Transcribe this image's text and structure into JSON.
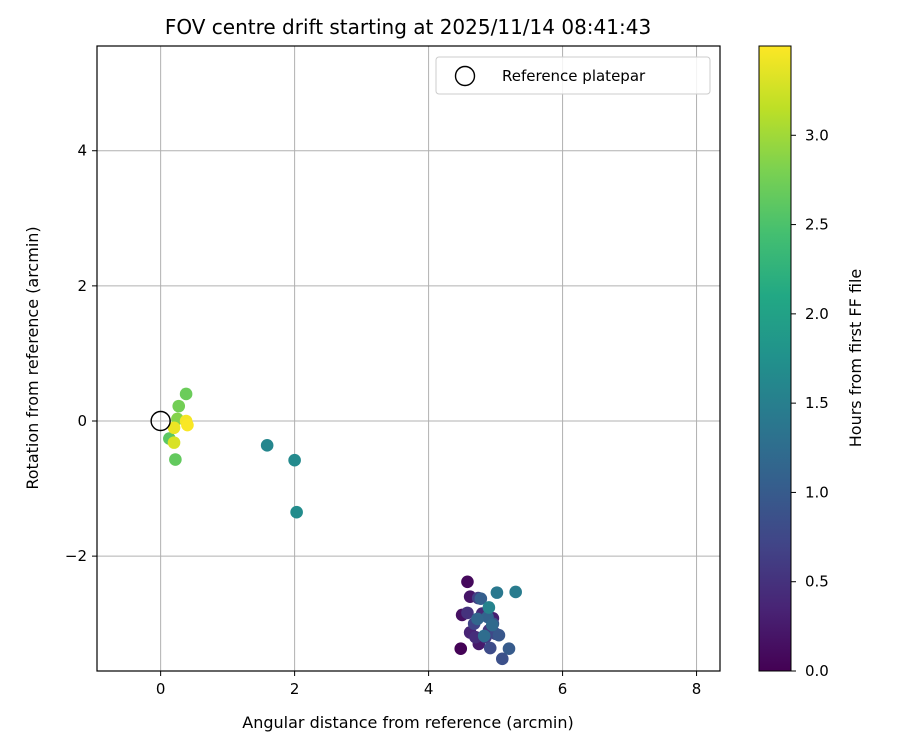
{
  "chart_data": {
    "type": "scatter",
    "title": "FOV centre drift starting at 2025/11/14 08:41:43",
    "xlabel": "Angular distance from reference (arcmin)",
    "ylabel": "Rotation from reference (arcmin)",
    "xlim": [
      -0.95,
      8.35
    ],
    "ylim": [
      -3.7,
      5.55
    ],
    "xticks": [
      0,
      2,
      4,
      6,
      8
    ],
    "yticks": [
      -2,
      0,
      2,
      4
    ],
    "xtick_labels": [
      "0",
      "2",
      "4",
      "6",
      "8"
    ],
    "ytick_labels": [
      "−2",
      "0",
      "2",
      "4"
    ],
    "grid": true,
    "legend": {
      "position": "top-right",
      "label": "Reference platepar"
    },
    "reference_point": {
      "x": 0,
      "y": 0,
      "name": "Reference platepar"
    },
    "colorbar": {
      "label": "Hours from first FF file",
      "colormap": "viridis",
      "range": [
        0.0,
        3.5
      ],
      "ticks": [
        0.0,
        0.5,
        1.0,
        1.5,
        2.0,
        2.5,
        3.0
      ],
      "tick_labels": [
        "0.0",
        "0.5",
        "1.0",
        "1.5",
        "2.0",
        "2.5",
        "3.0"
      ]
    },
    "points": [
      {
        "x": 4.48,
        "y": -3.37,
        "hours": 0.02
      },
      {
        "x": 4.58,
        "y": -2.38,
        "hours": 0.08
      },
      {
        "x": 4.5,
        "y": -2.87,
        "hours": 0.15
      },
      {
        "x": 4.62,
        "y": -2.6,
        "hours": 0.2
      },
      {
        "x": 4.75,
        "y": -3.3,
        "hours": 0.25
      },
      {
        "x": 4.96,
        "y": -2.92,
        "hours": 0.3
      },
      {
        "x": 4.62,
        "y": -3.13,
        "hours": 0.35
      },
      {
        "x": 4.8,
        "y": -2.85,
        "hours": 0.4
      },
      {
        "x": 4.7,
        "y": -3.2,
        "hours": 0.45
      },
      {
        "x": 4.58,
        "y": -2.84,
        "hours": 0.5
      },
      {
        "x": 4.9,
        "y": -3.1,
        "hours": 0.55
      },
      {
        "x": 4.85,
        "y": -3.2,
        "hours": 0.6
      },
      {
        "x": 4.74,
        "y": -2.62,
        "hours": 0.65
      },
      {
        "x": 4.68,
        "y": -3.0,
        "hours": 0.7
      },
      {
        "x": 5.0,
        "y": -3.15,
        "hours": 0.75
      },
      {
        "x": 4.92,
        "y": -3.36,
        "hours": 0.8
      },
      {
        "x": 5.1,
        "y": -3.52,
        "hours": 0.85
      },
      {
        "x": 4.96,
        "y": -3.0,
        "hours": 0.9
      },
      {
        "x": 5.05,
        "y": -3.17,
        "hours": 0.95
      },
      {
        "x": 5.2,
        "y": -3.37,
        "hours": 1.0
      },
      {
        "x": 4.78,
        "y": -2.63,
        "hours": 1.05
      },
      {
        "x": 4.88,
        "y": -2.9,
        "hours": 1.1
      },
      {
        "x": 4.73,
        "y": -2.93,
        "hours": 1.15
      },
      {
        "x": 4.95,
        "y": -3.02,
        "hours": 1.2
      },
      {
        "x": 4.83,
        "y": -3.18,
        "hours": 1.25
      },
      {
        "x": 5.02,
        "y": -2.54,
        "hours": 1.4
      },
      {
        "x": 5.3,
        "y": -2.53,
        "hours": 1.45
      },
      {
        "x": 4.9,
        "y": -2.76,
        "hours": 1.55
      },
      {
        "x": 1.59,
        "y": -0.36,
        "hours": 1.6
      },
      {
        "x": 2.0,
        "y": -0.58,
        "hours": 1.65
      },
      {
        "x": 2.03,
        "y": -1.35,
        "hours": 1.68
      },
      {
        "x": 0.13,
        "y": -0.26,
        "hours": 2.6
      },
      {
        "x": 0.22,
        "y": -0.57,
        "hours": 2.65
      },
      {
        "x": 0.38,
        "y": 0.4,
        "hours": 2.7
      },
      {
        "x": 0.27,
        "y": 0.22,
        "hours": 2.75
      },
      {
        "x": 0.25,
        "y": 0.03,
        "hours": 2.85
      },
      {
        "x": 0.2,
        "y": -0.32,
        "hours": 3.3
      },
      {
        "x": 0.2,
        "y": -0.1,
        "hours": 3.4
      },
      {
        "x": 0.38,
        "y": 0.0,
        "hours": 3.45
      },
      {
        "x": 0.4,
        "y": -0.06,
        "hours": 3.48
      }
    ]
  }
}
